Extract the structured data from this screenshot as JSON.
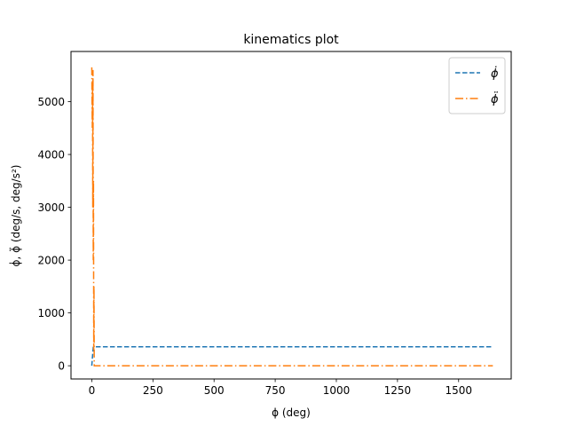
{
  "chart_data": {
    "type": "line",
    "title": "kinematics plot",
    "xlabel": "ϕ (deg)",
    "ylabel": "ϕ̇, ϕ̈ (deg/s, deg/s²)",
    "xlim": [
      -85,
      1715
    ],
    "ylim": [
      -250,
      5950
    ],
    "xticks": [
      0,
      250,
      500,
      750,
      1000,
      1250,
      1500
    ],
    "yticks": [
      0,
      1000,
      2000,
      3000,
      4000,
      5000
    ],
    "grid": false,
    "legend_position": "upper right",
    "series": [
      {
        "name": "ϕ̇",
        "color": "#1f77b4",
        "linestyle": "dashed",
        "points": [
          [
            0,
            0
          ],
          [
            2,
            120
          ],
          [
            4,
            240
          ],
          [
            6,
            350
          ],
          [
            8,
            360
          ],
          [
            20,
            360
          ],
          [
            200,
            360
          ],
          [
            600,
            360
          ],
          [
            1000,
            360
          ],
          [
            1400,
            360
          ],
          [
            1640,
            360
          ]
        ]
      },
      {
        "name": "ϕ̈",
        "color": "#ff7f0e",
        "linestyle": "dashdot",
        "points": [
          [
            0,
            5650
          ],
          [
            1,
            5000
          ],
          [
            2,
            4500
          ],
          [
            3,
            5400
          ],
          [
            4,
            3000
          ],
          [
            5,
            5600
          ],
          [
            6,
            2000
          ],
          [
            7,
            3500
          ],
          [
            8,
            300
          ],
          [
            9,
            1500
          ],
          [
            10,
            0
          ],
          [
            12,
            0
          ],
          [
            100,
            0
          ],
          [
            500,
            0
          ],
          [
            1000,
            0
          ],
          [
            1640,
            0
          ]
        ]
      }
    ]
  }
}
